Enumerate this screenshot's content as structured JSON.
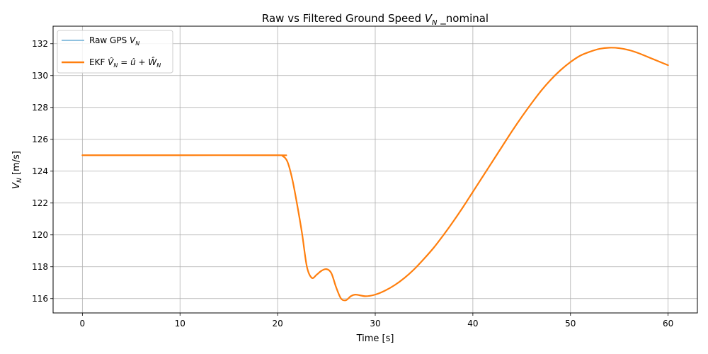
{
  "chart_data": {
    "type": "line",
    "title": "Raw vs Filtered Ground Speed V_N _nominal",
    "title_parts": {
      "prefix": "Raw vs Filtered Ground Speed ",
      "symbol": "V",
      "subscript": "N",
      "suffix": " _nominal"
    },
    "xlabel": "Time [s]",
    "ylabel": "V_N [m/s]",
    "ylabel_parts": {
      "symbol": "V",
      "subscript": "N",
      "unit": " [m/s]"
    },
    "xlim": [
      -3,
      63
    ],
    "ylim": [
      115.1,
      133.1
    ],
    "xticks": [
      0,
      10,
      20,
      30,
      40,
      50,
      60
    ],
    "yticks": [
      116,
      118,
      120,
      122,
      124,
      126,
      128,
      130,
      132
    ],
    "grid": true,
    "legend_position": "upper left",
    "series": [
      {
        "name": "Raw GPS V_N",
        "color": "#6baed6",
        "x": [
          0,
          10,
          20,
          20.5,
          21,
          21.5,
          22,
          22.5,
          23,
          23.5,
          24,
          24.5,
          25,
          25.5,
          26,
          26.5,
          27,
          27.5,
          28,
          29,
          30,
          31,
          32,
          33,
          34,
          35,
          36,
          37,
          38,
          39,
          40,
          41,
          42,
          43,
          44,
          45,
          46,
          47,
          48,
          49,
          50,
          51,
          52,
          53,
          54,
          55,
          56,
          57,
          58,
          59,
          60
        ],
        "y": [
          125.0,
          125.0,
          125.0,
          124.95,
          124.6,
          123.5,
          121.9,
          120.1,
          118.0,
          117.3,
          117.5,
          117.75,
          117.85,
          117.6,
          116.7,
          116.0,
          115.9,
          116.15,
          116.25,
          116.15,
          116.25,
          116.5,
          116.85,
          117.3,
          117.85,
          118.5,
          119.2,
          120.0,
          120.85,
          121.75,
          122.7,
          123.65,
          124.6,
          125.55,
          126.5,
          127.4,
          128.25,
          129.05,
          129.75,
          130.35,
          130.85,
          131.25,
          131.5,
          131.68,
          131.75,
          131.72,
          131.6,
          131.4,
          131.15,
          130.9,
          130.65
        ]
      },
      {
        "name": "EKF Ŷ_N = û + Ŵ_N",
        "color": "#ff7f0e",
        "x": [
          0,
          10,
          20,
          20.5,
          21,
          21.5,
          22,
          22.5,
          23,
          23.5,
          24,
          24.5,
          25,
          25.5,
          26,
          26.5,
          27,
          27.5,
          28,
          29,
          30,
          31,
          32,
          33,
          34,
          35,
          36,
          37,
          38,
          39,
          40,
          41,
          42,
          43,
          44,
          45,
          46,
          47,
          48,
          49,
          50,
          51,
          52,
          53,
          54,
          55,
          56,
          57,
          58,
          59,
          60
        ],
        "y": [
          125.0,
          125.0,
          125.0,
          124.95,
          124.6,
          123.5,
          121.9,
          120.1,
          118.0,
          117.3,
          117.5,
          117.75,
          117.85,
          117.6,
          116.7,
          116.0,
          115.9,
          116.15,
          116.25,
          116.15,
          116.25,
          116.5,
          116.85,
          117.3,
          117.85,
          118.5,
          119.2,
          120.0,
          120.85,
          121.75,
          122.7,
          123.65,
          124.6,
          125.55,
          126.5,
          127.4,
          128.25,
          129.05,
          129.75,
          130.35,
          130.85,
          131.25,
          131.5,
          131.68,
          131.75,
          131.72,
          131.6,
          131.4,
          131.15,
          130.9,
          130.65
        ]
      }
    ],
    "legend": {
      "raw_prefix": "Raw GPS ",
      "ekf_prefix": "EKF "
    }
  }
}
